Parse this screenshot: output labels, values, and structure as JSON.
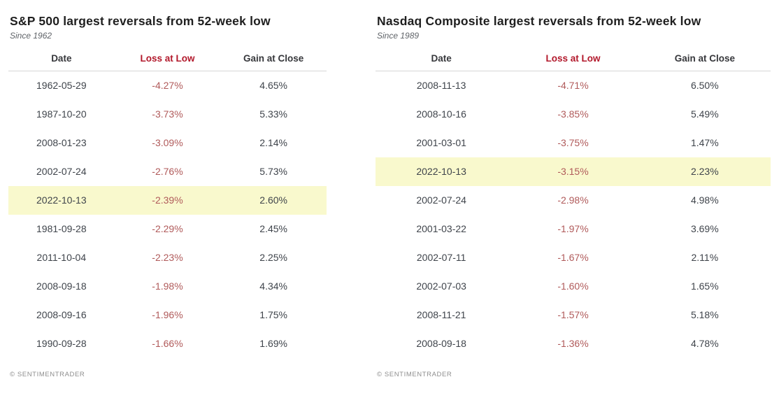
{
  "footer": {
    "text": "© SENTIMENTRADER"
  },
  "colors": {
    "loss_header": "#b2182b",
    "loss_value": "#b05a5a",
    "row_highlight": "#f9f9cd"
  },
  "chart_data": [
    {
      "type": "table",
      "title": "S&P 500 largest reversals from 52-week low",
      "subtitle": "Since 1962",
      "columns": [
        "Date",
        "Loss at Low",
        "Gain at Close"
      ],
      "rows": [
        [
          "1962-05-29",
          "-4.27%",
          "4.65%"
        ],
        [
          "1987-10-20",
          "-3.73%",
          "5.33%"
        ],
        [
          "2008-01-23",
          "-3.09%",
          "2.14%"
        ],
        [
          "2002-07-24",
          "-2.76%",
          "5.73%"
        ],
        [
          "2022-10-13",
          "-2.39%",
          "2.60%"
        ],
        [
          "1981-09-28",
          "-2.29%",
          "2.45%"
        ],
        [
          "2011-10-04",
          "-2.23%",
          "2.25%"
        ],
        [
          "2008-09-18",
          "-1.98%",
          "4.34%"
        ],
        [
          "2008-09-16",
          "-1.96%",
          "1.75%"
        ],
        [
          "1990-09-28",
          "-1.66%",
          "1.69%"
        ]
      ],
      "highlight_rows": [
        4
      ]
    },
    {
      "type": "table",
      "title": "Nasdaq Composite largest reversals from 52-week low",
      "subtitle": "Since 1989",
      "columns": [
        "Date",
        "Loss at Low",
        "Gain at Close"
      ],
      "rows": [
        [
          "2008-11-13",
          "-4.71%",
          "6.50%"
        ],
        [
          "2008-10-16",
          "-3.85%",
          "5.49%"
        ],
        [
          "2001-03-01",
          "-3.75%",
          "1.47%"
        ],
        [
          "2022-10-13",
          "-3.15%",
          "2.23%"
        ],
        [
          "2002-07-24",
          "-2.98%",
          "4.98%"
        ],
        [
          "2001-03-22",
          "-1.97%",
          "3.69%"
        ],
        [
          "2002-07-11",
          "-1.67%",
          "2.11%"
        ],
        [
          "2002-07-03",
          "-1.60%",
          "1.65%"
        ],
        [
          "2008-11-21",
          "-1.57%",
          "5.18%"
        ],
        [
          "2008-09-18",
          "-1.36%",
          "4.78%"
        ]
      ],
      "highlight_rows": [
        3
      ]
    }
  ]
}
